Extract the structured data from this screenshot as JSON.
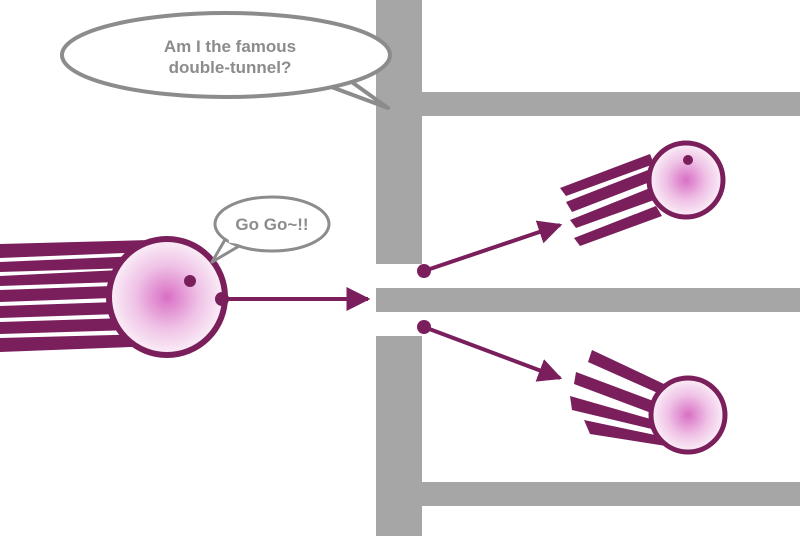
{
  "speech_bubbles": {
    "wall_line1": "Am I the famous",
    "wall_line2": "double-tunnel?",
    "particle": "Go Go~!!"
  },
  "colors": {
    "wall": "#a6a6a6",
    "particle_outline": "#7a1f5c",
    "particle_core": "#d96fc4",
    "trail": "#7a1f5c",
    "arrow": "#7a1f5c",
    "bubble_stroke": "#8c8c8c",
    "bubble_text": "#8c8c8c"
  }
}
